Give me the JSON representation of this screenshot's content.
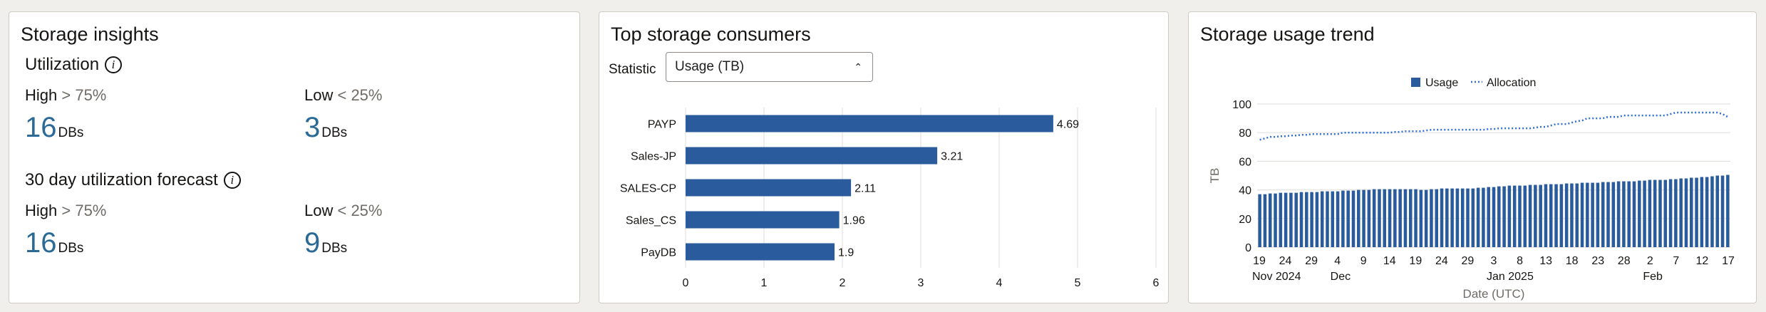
{
  "insights": {
    "title": "Storage insights",
    "utilization": {
      "title": "Utilization",
      "info_icon": "info-icon",
      "high": {
        "label": "High",
        "cmp": "> 75%",
        "value": "16",
        "unit": "DBs"
      },
      "low": {
        "label": "Low",
        "cmp": "< 25%",
        "value": "3",
        "unit": "DBs"
      }
    },
    "forecast": {
      "title": "30 day utilization forecast",
      "info_icon": "info-icon",
      "high": {
        "label": "High",
        "cmp": "> 75%",
        "value": "16",
        "unit": "DBs"
      },
      "low": {
        "label": "Low",
        "cmp": "< 25%",
        "value": "9",
        "unit": "DBs"
      }
    }
  },
  "consumers": {
    "title": "Top storage consumers",
    "statistic_label": "Statistic",
    "statistic_value": "Usage (TB)",
    "chart_data": {
      "type": "bar",
      "orientation": "horizontal",
      "categories": [
        "PAYP",
        "Sales-JP",
        "SALES-CP",
        "Sales_CS",
        "PayDB"
      ],
      "values": [
        4.69,
        3.21,
        2.11,
        1.96,
        1.9
      ],
      "value_labels": [
        "4.69",
        "3.21",
        "2.11",
        "1.96",
        "1.9"
      ],
      "xlim": [
        0,
        6
      ],
      "xticks": [
        "0",
        "1",
        "2",
        "3",
        "4",
        "5",
        "6"
      ],
      "grid": true,
      "color": "#2a5b9c"
    }
  },
  "trend": {
    "title": "Storage usage trend",
    "chart_data": {
      "type": "bar",
      "legend": [
        {
          "name": "Usage",
          "style": "bar",
          "color": "#2a5b9c"
        },
        {
          "name": "Allocation",
          "style": "dotted-line",
          "color": "#2f6fd6"
        }
      ],
      "legend_position": "top-center",
      "ylabel": "TB",
      "xlabel": "Date (UTC)",
      "ylim": [
        0,
        100
      ],
      "yticks": [
        "0",
        "20",
        "40",
        "60",
        "80",
        "100"
      ],
      "xticks": [
        "19",
        "24",
        "29",
        "4",
        "9",
        "14",
        "19",
        "24",
        "29",
        "3",
        "8",
        "13",
        "18",
        "23",
        "28",
        "2",
        "7",
        "12",
        "17"
      ],
      "month_labels": [
        {
          "label": "Nov 2024",
          "tick_index": 0
        },
        {
          "label": "Dec",
          "tick_index": 3
        },
        {
          "label": "Jan 2025",
          "tick_index": 9
        },
        {
          "label": "Feb",
          "tick_index": 15
        }
      ],
      "start_date": "2024-11-19",
      "end_date": "2025-02-17",
      "series": [
        {
          "name": "Usage",
          "values": [
            37,
            37,
            37.5,
            37.5,
            38,
            38,
            38,
            38,
            38.5,
            38.5,
            38.5,
            38.5,
            39,
            39,
            39,
            39,
            39.5,
            39.5,
            39.5,
            40,
            40,
            40,
            40.5,
            40.5,
            40.5,
            40.5,
            40.5,
            40.5,
            40.5,
            40.5,
            40.5,
            40,
            40,
            40.5,
            40.5,
            41,
            41,
            41,
            41,
            41,
            41,
            41,
            41.5,
            41.5,
            42,
            42,
            42.5,
            42.5,
            43,
            43,
            43,
            43,
            43.5,
            43.5,
            43.5,
            44,
            44,
            44,
            44,
            44.5,
            44.5,
            44.5,
            45,
            45,
            45,
            45,
            45.5,
            45.5,
            45.5,
            46,
            46,
            46,
            46,
            46.5,
            46.5,
            47,
            47,
            47,
            47,
            47.5,
            47.5,
            48,
            48,
            48.5,
            48.5,
            49,
            49,
            49.5,
            50,
            50,
            50.5
          ]
        },
        {
          "name": "Allocation",
          "values": [
            75,
            76,
            77,
            77,
            77.5,
            77.5,
            78,
            78,
            78.5,
            78.5,
            79,
            79,
            79,
            79,
            79,
            79,
            80,
            80,
            80,
            80,
            80,
            80,
            80,
            80,
            80,
            80,
            80.5,
            80.5,
            81,
            81,
            81,
            81,
            81.5,
            82,
            82,
            82,
            82,
            82,
            82,
            82,
            82,
            82,
            82,
            82,
            82.5,
            82.5,
            83,
            83,
            83,
            83,
            83,
            83,
            83,
            83.5,
            84,
            84,
            85,
            86,
            86,
            86,
            87,
            88,
            88.5,
            90,
            90,
            90,
            90,
            91,
            91,
            91,
            92,
            92,
            92,
            92,
            92,
            92,
            92,
            92,
            92,
            93,
            94,
            94,
            94,
            94,
            94,
            94,
            94,
            94,
            94,
            93,
            91
          ]
        }
      ],
      "grid": true
    }
  }
}
